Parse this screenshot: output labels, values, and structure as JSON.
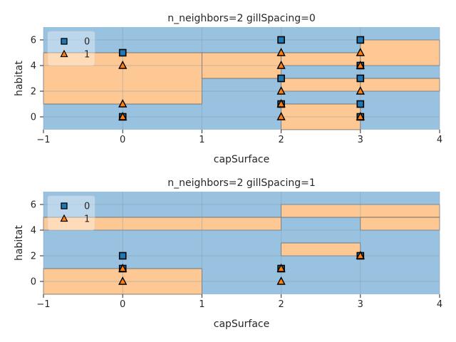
{
  "chart_data": [
    {
      "type": "scatter",
      "title": "n_neighbors=2 gillSpacing=0",
      "xlabel": "capSurface",
      "ylabel": "habitat",
      "xlim": [
        -1,
        4
      ],
      "ylim": [
        -1,
        7
      ],
      "xticks": [
        "−1",
        "0",
        "1",
        "2",
        "3",
        "4"
      ],
      "yticks": [
        "0",
        "2",
        "4",
        "6"
      ],
      "grid": true,
      "legend": {
        "placement": "top-left",
        "entries": [
          "0",
          "1"
        ]
      },
      "region_colors": {
        "0": "#99c2e0",
        "1": "#fec894"
      },
      "decision_regions": [
        {
          "class": 0,
          "x": [
            -1,
            4
          ],
          "y": [
            -1,
            7
          ]
        },
        {
          "class": 1,
          "x": [
            -1,
            1
          ],
          "y": [
            1,
            5
          ]
        },
        {
          "class": 1,
          "x": [
            1,
            2
          ],
          "y": [
            3,
            5
          ]
        },
        {
          "class": 1,
          "x": [
            2,
            3
          ],
          "y": [
            2,
            3
          ]
        },
        {
          "class": 1,
          "x": [
            2,
            3
          ],
          "y": [
            4,
            5
          ]
        },
        {
          "class": 1,
          "x": [
            3,
            4
          ],
          "y": [
            2,
            3
          ]
        },
        {
          "class": 1,
          "x": [
            3,
            4
          ],
          "y": [
            4,
            6
          ]
        },
        {
          "class": 1,
          "x": [
            2,
            3
          ],
          "y": [
            -1,
            1
          ]
        }
      ],
      "series": [
        {
          "name": "0",
          "marker": "square",
          "color": "#1f77b4",
          "points": [
            [
              0,
              0
            ],
            [
              0,
              5
            ],
            [
              2,
              1
            ],
            [
              2,
              3
            ],
            [
              2,
              6
            ],
            [
              3,
              0
            ],
            [
              3,
              1
            ],
            [
              3,
              3
            ],
            [
              3,
              4
            ],
            [
              3,
              6
            ]
          ]
        },
        {
          "name": "1",
          "marker": "triangle",
          "color": "#ff7f0e",
          "points": [
            [
              0,
              0
            ],
            [
              0,
              1
            ],
            [
              0,
              4
            ],
            [
              2,
              0
            ],
            [
              2,
              1
            ],
            [
              2,
              2
            ],
            [
              2,
              4
            ],
            [
              2,
              5
            ],
            [
              3,
              0
            ],
            [
              3,
              2
            ],
            [
              3,
              4
            ],
            [
              3,
              5
            ]
          ]
        }
      ]
    },
    {
      "type": "scatter",
      "title": "n_neighbors=2 gillSpacing=1",
      "xlabel": "capSurface",
      "ylabel": "habitat",
      "xlim": [
        -1,
        4
      ],
      "ylim": [
        -1,
        7
      ],
      "xticks": [
        "−1",
        "0",
        "1",
        "2",
        "3",
        "4"
      ],
      "yticks": [
        "0",
        "2",
        "4",
        "6"
      ],
      "grid": true,
      "legend": {
        "placement": "top-left",
        "entries": [
          "0",
          "1"
        ]
      },
      "region_colors": {
        "0": "#99c2e0",
        "1": "#fec894"
      },
      "decision_regions": [
        {
          "class": 0,
          "x": [
            -1,
            4
          ],
          "y": [
            -1,
            7
          ]
        },
        {
          "class": 1,
          "x": [
            -1,
            1
          ],
          "y": [
            -1,
            1
          ]
        },
        {
          "class": 1,
          "x": [
            -1,
            2
          ],
          "y": [
            4,
            5
          ]
        },
        {
          "class": 1,
          "x": [
            2,
            3
          ],
          "y": [
            2,
            3
          ]
        },
        {
          "class": 1,
          "x": [
            2,
            4
          ],
          "y": [
            5,
            6
          ]
        },
        {
          "class": 1,
          "x": [
            3,
            4
          ],
          "y": [
            4,
            5
          ]
        }
      ],
      "series": [
        {
          "name": "0",
          "marker": "square",
          "color": "#1f77b4",
          "points": [
            [
              0,
              1
            ],
            [
              0,
              2
            ],
            [
              2,
              1
            ],
            [
              3,
              2
            ]
          ]
        },
        {
          "name": "1",
          "marker": "triangle",
          "color": "#ff7f0e",
          "points": [
            [
              0,
              0
            ],
            [
              0,
              1
            ],
            [
              2,
              0
            ],
            [
              2,
              1
            ],
            [
              3,
              2
            ]
          ]
        }
      ]
    }
  ]
}
